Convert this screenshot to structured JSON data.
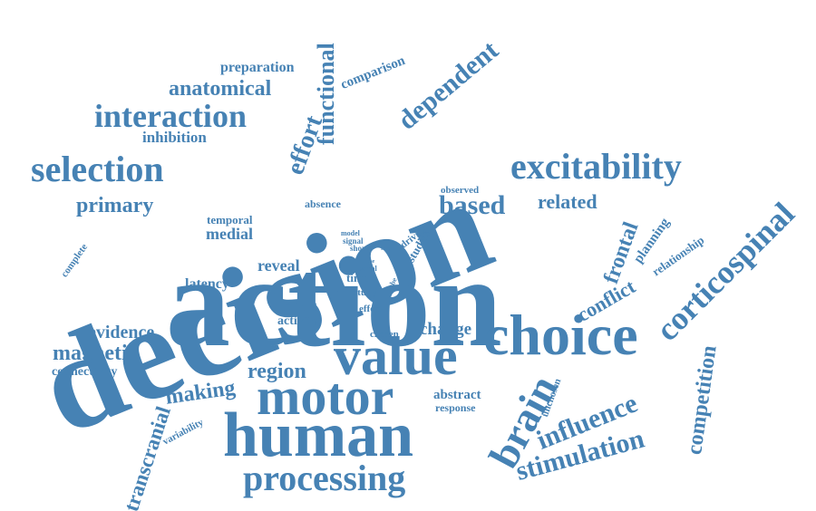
{
  "accent_color": "#4682b4",
  "words": {
    "decision": "decision",
    "action": "action",
    "choice": "choice",
    "value": "value",
    "human": "human",
    "motor": "motor",
    "brain": "brain",
    "excitability": "excitability",
    "selection": "selection",
    "interaction": "interaction",
    "anatomical": "anatomical",
    "preparation": "preparation",
    "functional": "functional",
    "effort": "effort",
    "comparison": "comparison",
    "dependent": "dependent",
    "inhibition": "inhibition",
    "primary": "primary",
    "based": "based",
    "related": "related",
    "observed": "observed",
    "corticospinal": "corticospinal",
    "frontal": "frontal",
    "planning": "planning",
    "relationship": "relationship",
    "conflict": "conflict",
    "competition": "competition",
    "influence": "influence",
    "stimulation": "stimulation",
    "processing": "processing",
    "transcranial": "transcranial",
    "making": "making",
    "region": "region",
    "evidence": "evidence",
    "magnetic": "magnetic",
    "connectivity": "connectivity",
    "latency": "latency",
    "reveal": "reveal",
    "proc": "proc",
    "activity": "activity",
    "temporal": "temporal",
    "medial": "medial",
    "absence": "absence",
    "complete": "complete",
    "change": "change",
    "abstract": "abstract",
    "response": "response",
    "variability": "variability",
    "chosen": "chosen",
    "unchosen": "unchosen",
    "effect": "effect",
    "study": "study",
    "time": "time",
    "serial": "serial",
    "use": "use",
    "trial": "trial",
    "short": "short",
    "signal": "signal",
    "model": "model",
    "lobe": "lobe",
    "studies": "studies",
    "driving": "driving"
  }
}
